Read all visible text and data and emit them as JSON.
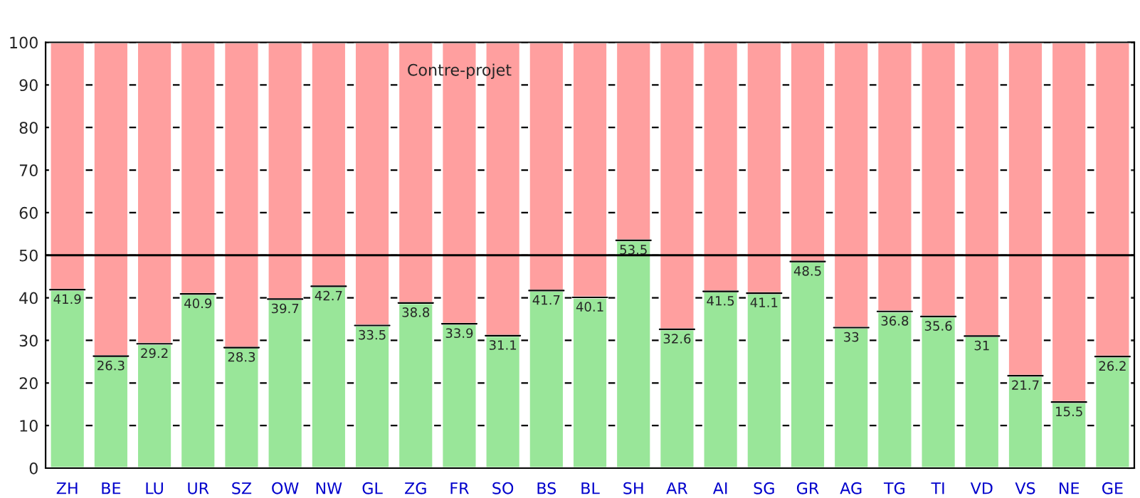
{
  "chart_data": {
    "type": "bar",
    "title": "Contre-projet",
    "stacked": true,
    "categories": [
      "ZH",
      "BE",
      "LU",
      "UR",
      "SZ",
      "OW",
      "NW",
      "GL",
      "ZG",
      "FR",
      "SO",
      "BS",
      "BL",
      "SH",
      "AR",
      "AI",
      "SG",
      "GR",
      "AG",
      "TG",
      "TI",
      "VD",
      "VS",
      "NE",
      "GE"
    ],
    "series": [
      {
        "color": "#99e699",
        "values": [
          41.9,
          26.3,
          29.2,
          40.9,
          28.3,
          39.7,
          42.7,
          33.5,
          38.8,
          33.9,
          31.1,
          41.7,
          40.1,
          53.5,
          32.6,
          41.5,
          41.1,
          48.5,
          33,
          36.8,
          35.6,
          31,
          21.7,
          15.5,
          26.2
        ],
        "value_labels": [
          "41.9",
          "26.3",
          "29.2",
          "40.9",
          "28.3",
          "39.7",
          "42.7",
          "33.5",
          "38.8",
          "33.9",
          "31.1",
          "41.7",
          "40.1",
          "53.5",
          "32.6",
          "41.5",
          "41.1",
          "48.5",
          "33",
          "36.8",
          "35.6",
          "31",
          "21.7",
          "15.5",
          "26.2"
        ]
      },
      {
        "color": "#ff9f9f",
        "values": [
          58.1,
          73.7,
          70.8,
          59.1,
          71.7,
          60.3,
          57.3,
          66.5,
          61.2,
          66.1,
          68.9,
          58.3,
          59.9,
          46.5,
          67.4,
          58.5,
          58.9,
          51.5,
          67,
          63.2,
          64.4,
          69,
          78.3,
          84.5,
          73.8
        ]
      }
    ],
    "ylim": [
      0,
      100
    ],
    "yticks": [
      0,
      10,
      20,
      30,
      40,
      50,
      60,
      70,
      80,
      90,
      100
    ],
    "grid": "y",
    "ref_lines": [
      {
        "axis": "y",
        "value": 50,
        "color": "#000000"
      }
    ]
  }
}
